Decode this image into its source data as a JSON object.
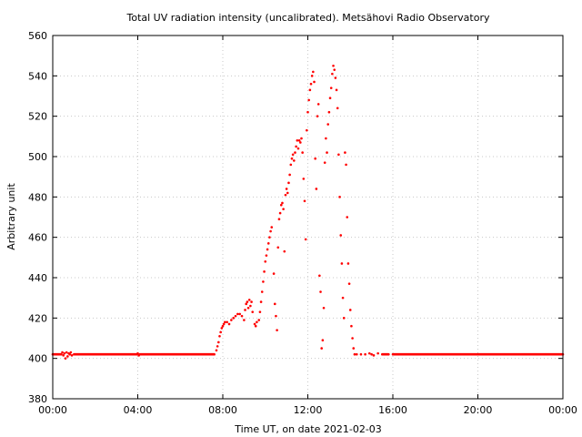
{
  "chart_data": {
    "type": "scatter",
    "title": "Total UV radiation intensity (uncalibrated). Metsähovi Radio Observatory",
    "xlabel": "Time UT, on date 2021-02-03",
    "ylabel": "Arbitrary unit",
    "xlim": [
      0,
      24
    ],
    "ylim": [
      380,
      560
    ],
    "x_ticks": [
      0,
      4,
      8,
      12,
      16,
      20,
      24
    ],
    "x_tick_labels": [
      "00:00",
      "04:00",
      "08:00",
      "12:00",
      "16:00",
      "20:00",
      "00:00"
    ],
    "y_ticks": [
      380,
      400,
      420,
      440,
      460,
      480,
      500,
      520,
      540,
      560
    ],
    "y_tick_labels": [
      "380",
      "400",
      "420",
      "440",
      "460",
      "480",
      "500",
      "520",
      "540",
      "560"
    ],
    "grid": true,
    "series": [
      {
        "color": "#ff0000",
        "points": [
          [
            0.0,
            402
          ],
          [
            0.4,
            402
          ],
          [
            0.45,
            403
          ],
          [
            0.5,
            401.5
          ],
          [
            0.55,
            402.5
          ],
          [
            0.6,
            400
          ],
          [
            0.65,
            403
          ],
          [
            0.7,
            401
          ],
          [
            0.75,
            402.5
          ],
          [
            0.8,
            402
          ],
          [
            0.85,
            403
          ],
          [
            0.9,
            401.5
          ],
          [
            1.0,
            402
          ],
          [
            2.0,
            402
          ],
          [
            3.0,
            402
          ],
          [
            3.95,
            402
          ],
          [
            4.0,
            402.5
          ],
          [
            4.05,
            401.5
          ],
          [
            4.1,
            402
          ],
          [
            5.0,
            402
          ],
          [
            6.0,
            402
          ],
          [
            7.0,
            402
          ],
          [
            7.6,
            402
          ],
          [
            7.7,
            404
          ],
          [
            7.75,
            406
          ],
          [
            7.8,
            408
          ],
          [
            7.85,
            411
          ],
          [
            7.9,
            413
          ],
          [
            7.95,
            415
          ],
          [
            8.0,
            416
          ],
          [
            8.05,
            417
          ],
          [
            8.1,
            418
          ],
          [
            8.2,
            418
          ],
          [
            8.3,
            417
          ],
          [
            8.4,
            419
          ],
          [
            8.5,
            420
          ],
          [
            8.6,
            421
          ],
          [
            8.7,
            422
          ],
          [
            8.8,
            422
          ],
          [
            8.9,
            421
          ],
          [
            9.0,
            419
          ],
          [
            9.05,
            424
          ],
          [
            9.1,
            427
          ],
          [
            9.15,
            428
          ],
          [
            9.2,
            425
          ],
          [
            9.25,
            429
          ],
          [
            9.3,
            426
          ],
          [
            9.35,
            428
          ],
          [
            9.4,
            423
          ],
          [
            9.5,
            417
          ],
          [
            9.55,
            416
          ],
          [
            9.6,
            418
          ],
          [
            9.7,
            419
          ],
          [
            9.75,
            423
          ],
          [
            9.8,
            428
          ],
          [
            9.85,
            433
          ],
          [
            9.9,
            438
          ],
          [
            9.95,
            443
          ],
          [
            10.0,
            448
          ],
          [
            10.05,
            451
          ],
          [
            10.1,
            454
          ],
          [
            10.15,
            457
          ],
          [
            10.2,
            460
          ],
          [
            10.25,
            463
          ],
          [
            10.3,
            465
          ],
          [
            10.4,
            442
          ],
          [
            10.45,
            427
          ],
          [
            10.5,
            421
          ],
          [
            10.55,
            414
          ],
          [
            10.6,
            455
          ],
          [
            10.65,
            469
          ],
          [
            10.7,
            472
          ],
          [
            10.75,
            476
          ],
          [
            10.8,
            477
          ],
          [
            10.85,
            474
          ],
          [
            10.9,
            453
          ],
          [
            10.95,
            481
          ],
          [
            11.0,
            484
          ],
          [
            11.05,
            482
          ],
          [
            11.1,
            487
          ],
          [
            11.15,
            491
          ],
          [
            11.2,
            496
          ],
          [
            11.25,
            499
          ],
          [
            11.3,
            501
          ],
          [
            11.35,
            498
          ],
          [
            11.4,
            502
          ],
          [
            11.45,
            505
          ],
          [
            11.5,
            508
          ],
          [
            11.55,
            504
          ],
          [
            11.6,
            508
          ],
          [
            11.65,
            507
          ],
          [
            11.7,
            509
          ],
          [
            11.75,
            502
          ],
          [
            11.8,
            489
          ],
          [
            11.85,
            478
          ],
          [
            11.9,
            459
          ],
          [
            11.95,
            513
          ],
          [
            12.0,
            522
          ],
          [
            12.05,
            528
          ],
          [
            12.1,
            533
          ],
          [
            12.15,
            536
          ],
          [
            12.2,
            540
          ],
          [
            12.25,
            542
          ],
          [
            12.3,
            537
          ],
          [
            12.35,
            499
          ],
          [
            12.4,
            484
          ],
          [
            12.45,
            520
          ],
          [
            12.5,
            526
          ],
          [
            12.55,
            441
          ],
          [
            12.6,
            433
          ],
          [
            12.65,
            405
          ],
          [
            12.7,
            409
          ],
          [
            12.75,
            425
          ],
          [
            12.8,
            497
          ],
          [
            12.85,
            509
          ],
          [
            12.9,
            502
          ],
          [
            12.95,
            516
          ],
          [
            13.0,
            522
          ],
          [
            13.05,
            529
          ],
          [
            13.1,
            534
          ],
          [
            13.15,
            541
          ],
          [
            13.2,
            545
          ],
          [
            13.25,
            543
          ],
          [
            13.3,
            539
          ],
          [
            13.35,
            533
          ],
          [
            13.4,
            524
          ],
          [
            13.45,
            501
          ],
          [
            13.5,
            480
          ],
          [
            13.55,
            461
          ],
          [
            13.6,
            447
          ],
          [
            13.65,
            430
          ],
          [
            13.7,
            420
          ],
          [
            13.75,
            502
          ],
          [
            13.8,
            496
          ],
          [
            13.85,
            470
          ],
          [
            13.9,
            447
          ],
          [
            13.95,
            437
          ],
          [
            14.0,
            424
          ],
          [
            14.05,
            416
          ],
          [
            14.1,
            410
          ],
          [
            14.15,
            405
          ],
          [
            14.2,
            402
          ],
          [
            14.3,
            402
          ],
          [
            14.5,
            402
          ],
          [
            14.7,
            402
          ],
          [
            14.9,
            402.5
          ],
          [
            15.0,
            402
          ],
          [
            15.1,
            401.5
          ],
          [
            15.3,
            402.5
          ],
          [
            15.5,
            402
          ],
          [
            15.8,
            402
          ],
          [
            16.0,
            402
          ],
          [
            17.0,
            402
          ],
          [
            18.0,
            402
          ],
          [
            19.0,
            402
          ],
          [
            20.0,
            402
          ],
          [
            21.0,
            402
          ],
          [
            22.0,
            402
          ],
          [
            23.0,
            402
          ],
          [
            24.0,
            402
          ]
        ]
      }
    ]
  }
}
